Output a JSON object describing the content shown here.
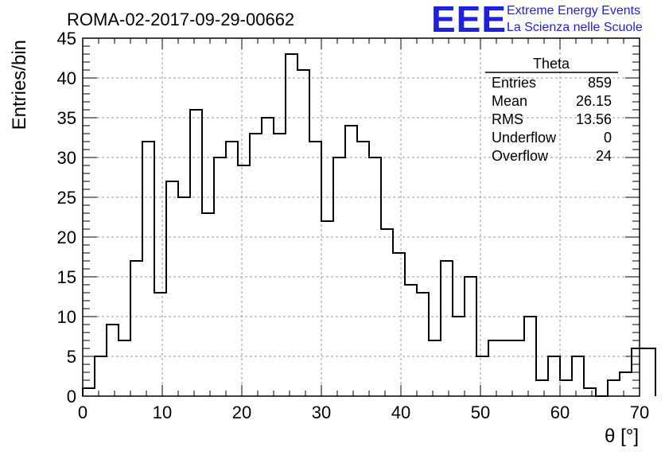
{
  "chart_data": {
    "type": "bar",
    "title": "ROMA-02-2017-09-29-00662",
    "xlabel": "θ [°]",
    "ylabel": "Entries/bin",
    "xlim": [
      0,
      70
    ],
    "ylim": [
      0,
      45
    ],
    "grid": true,
    "bin_width": 1.5,
    "x_start": 0,
    "values": [
      1,
      5,
      9,
      7,
      17,
      32,
      13,
      27,
      25,
      36,
      23,
      30,
      32,
      29,
      33,
      35,
      33,
      43,
      41,
      32,
      22,
      30,
      34,
      32,
      30,
      21,
      18,
      14,
      13,
      7,
      17,
      10,
      15,
      5,
      7,
      7,
      7,
      10,
      2,
      5,
      2,
      5,
      1,
      0,
      2,
      3,
      6,
      6
    ],
    "xticks": [
      "0",
      "10",
      "20",
      "30",
      "40",
      "50",
      "60",
      "70"
    ],
    "yticks": [
      "0",
      "5",
      "10",
      "15",
      "20",
      "25",
      "30",
      "35",
      "40",
      "45"
    ],
    "line_color": "#000000"
  },
  "logo": {
    "mark": "EEE",
    "line1": "Extreme Energy Events",
    "line2": "La Scienza nelle Scuole",
    "color": "#1f1fe0"
  },
  "stats": {
    "title": "Theta",
    "rows": [
      {
        "label": "Entries",
        "value": "859"
      },
      {
        "label": "Mean",
        "value": "26.15"
      },
      {
        "label": "RMS",
        "value": "13.56"
      },
      {
        "label": "Underflow",
        "value": "0"
      },
      {
        "label": "Overflow",
        "value": "24"
      }
    ]
  }
}
